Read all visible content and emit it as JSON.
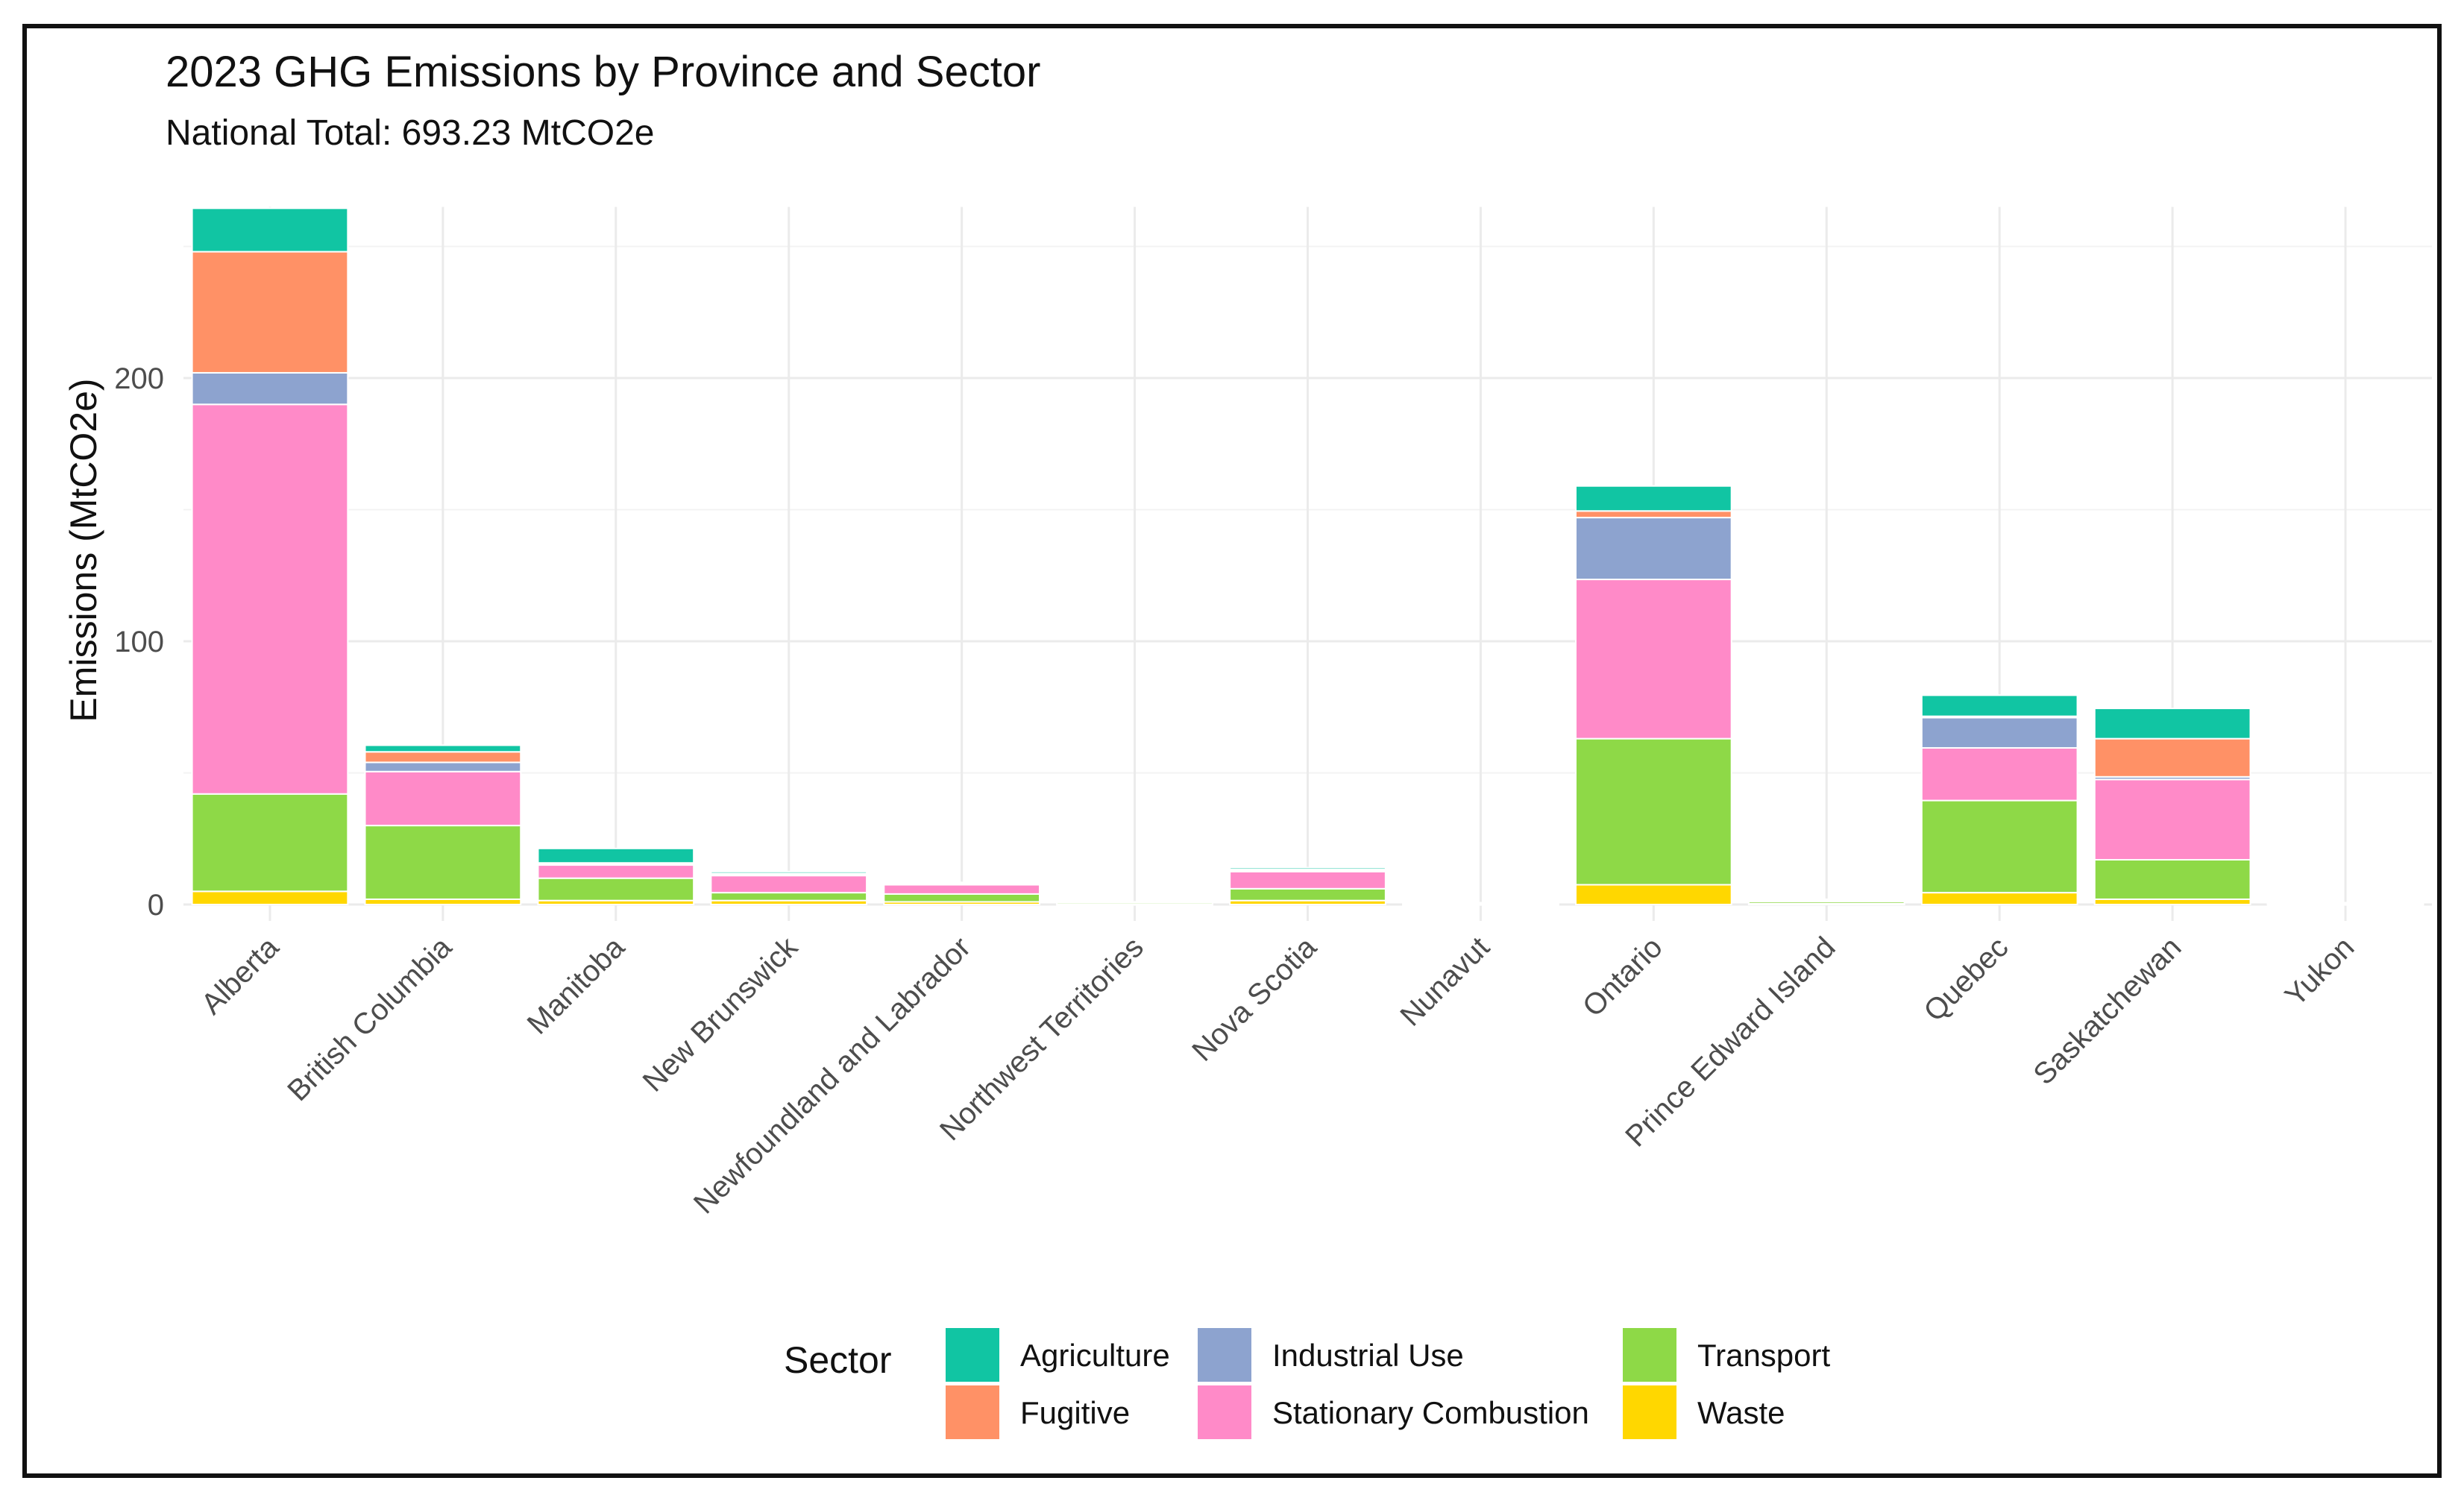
{
  "chart_data": {
    "type": "bar",
    "stacked": true,
    "title": "2023 GHG Emissions by Province and Sector",
    "subtitle": "National Total: 693.23 MtCO2e",
    "xlabel": "",
    "ylabel": "Emissions (MtCO2e)",
    "ylim": [
      0,
      265
    ],
    "yticks": [
      0,
      100,
      200
    ],
    "grid": true,
    "legend_title": "Sector",
    "legend_position": "bottom",
    "categories": [
      "Alberta",
      "British Columbia",
      "Manitoba",
      "New Brunswick",
      "Newfoundland and Labrador",
      "Northwest Territories",
      "Nova Scotia",
      "Nunavut",
      "Ontario",
      "Prince Edward Island",
      "Quebec",
      "Saskatchewan",
      "Yukon"
    ],
    "series": [
      {
        "name": "Waste",
        "color": "#FFD700",
        "values": [
          5,
          2,
          1.5,
          1.5,
          1,
          0.1,
          1.5,
          0.1,
          7.5,
          0.3,
          4.5,
          2,
          0.1
        ]
      },
      {
        "name": "Transport",
        "color": "#8ED947",
        "values": [
          37,
          28,
          8.5,
          3,
          3,
          0.7,
          4.5,
          0.5,
          55.5,
          0.8,
          35,
          15,
          0.5
        ]
      },
      {
        "name": "Stationary Combustion",
        "color": "#FF8AC8",
        "values": [
          148,
          20.5,
          5,
          6.5,
          3.5,
          0.2,
          6.5,
          0.1,
          60.5,
          0.3,
          20,
          30.5,
          0.1
        ]
      },
      {
        "name": "Industrial Use",
        "color": "#8DA3CF",
        "values": [
          12,
          3.5,
          0.5,
          0.5,
          0.3,
          0,
          0.5,
          0,
          23.5,
          0.1,
          11.5,
          1,
          0
        ]
      },
      {
        "name": "Fugitive",
        "color": "#FF9166",
        "values": [
          46,
          4,
          0.3,
          0.3,
          0.3,
          0,
          0.3,
          0,
          2.5,
          0,
          0.5,
          14.5,
          0
        ]
      },
      {
        "name": "Agriculture",
        "color": "#11C5A3",
        "values": [
          16.5,
          2.5,
          5.5,
          0.7,
          0.3,
          0,
          0.7,
          0,
          9.5,
          0.5,
          8,
          11.5,
          0
        ]
      }
    ]
  }
}
